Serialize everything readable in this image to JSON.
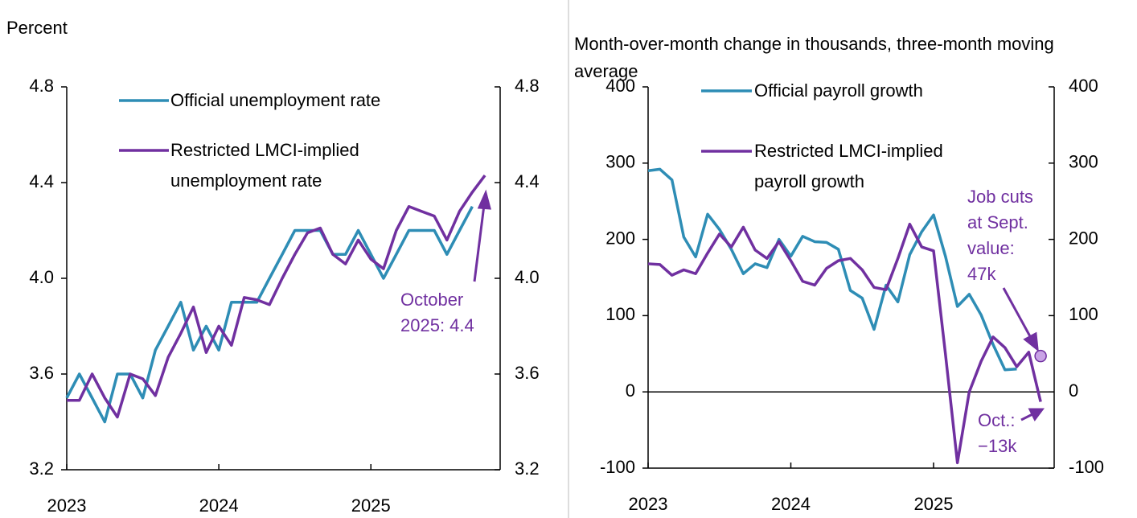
{
  "chart_data": [
    {
      "type": "line",
      "ylabel": "Percent",
      "x": [
        2023,
        2023.083,
        2023.167,
        2023.25,
        2023.333,
        2023.417,
        2023.5,
        2023.583,
        2023.667,
        2023.75,
        2023.833,
        2023.917,
        2024,
        2024.083,
        2024.167,
        2024.25,
        2024.333,
        2024.417,
        2024.5,
        2024.583,
        2024.667,
        2024.75,
        2024.833,
        2024.917,
        2025,
        2025.083,
        2025.167,
        2025.25,
        2025.333,
        2025.417,
        2025.5,
        2025.583,
        2025.667,
        2025.75
      ],
      "series": [
        {
          "name": "Official unemployment rate",
          "color": "#2e8db5",
          "values": [
            3.5,
            3.6,
            3.5,
            3.4,
            3.6,
            3.6,
            3.5,
            3.7,
            3.8,
            3.9,
            3.7,
            3.8,
            3.7,
            3.9,
            3.9,
            3.9,
            4.0,
            4.1,
            4.2,
            4.2,
            4.2,
            4.1,
            4.1,
            4.2,
            4.1,
            4.0,
            4.1,
            4.2,
            4.2,
            4.2,
            4.1,
            4.2,
            4.3,
            null
          ]
        },
        {
          "name": "Restricted LMCI-implied unemployment rate",
          "color": "#7030a0",
          "values": [
            3.49,
            3.49,
            3.6,
            3.5,
            3.42,
            3.6,
            3.58,
            3.51,
            3.67,
            3.77,
            3.88,
            3.69,
            3.8,
            3.72,
            3.92,
            3.91,
            3.89,
            4.0,
            4.1,
            4.19,
            4.21,
            4.1,
            4.06,
            4.16,
            4.08,
            4.04,
            4.2,
            4.3,
            4.28,
            4.26,
            4.16,
            4.28,
            4.36,
            4.43
          ]
        }
      ],
      "xlim": [
        2023,
        2025.85
      ],
      "xticks": [
        2023,
        2024,
        2025
      ],
      "ylim": [
        3.2,
        4.8
      ],
      "yticks": [
        3.2,
        3.6,
        {
          "value": 4,
          "label": "4.0"
        },
        4.4,
        4.8
      ],
      "annotations": [
        {
          "lines": [
            "October",
            "2025: 4.4"
          ],
          "color": "#7030a0"
        }
      ]
    },
    {
      "type": "line",
      "ylabel": "Month-over-month change in thousands, three-month moving average",
      "x": [
        2023,
        2023.083,
        2023.167,
        2023.25,
        2023.333,
        2023.417,
        2023.5,
        2023.583,
        2023.667,
        2023.75,
        2023.833,
        2023.917,
        2024,
        2024.083,
        2024.167,
        2024.25,
        2024.333,
        2024.417,
        2024.5,
        2024.583,
        2024.667,
        2024.75,
        2024.833,
        2024.917,
        2025,
        2025.083,
        2025.167,
        2025.25,
        2025.333,
        2025.417,
        2025.5,
        2025.583,
        2025.667,
        2025.75
      ],
      "series": [
        {
          "name": "Official payroll growth",
          "color": "#2e8db5",
          "values": [
            290,
            292,
            278,
            203,
            177,
            233,
            213,
            187,
            155,
            168,
            163,
            200,
            178,
            204,
            197,
            196,
            187,
            133,
            123,
            82,
            140,
            118,
            180,
            210,
            232,
            178,
            112,
            128,
            101,
            62,
            29,
            30,
            null,
            null
          ]
        },
        {
          "name": "Restricted LMCI-implied payroll growth",
          "color": "#7030a0",
          "values": [
            168,
            167,
            153,
            160,
            155,
            182,
            207,
            190,
            216,
            186,
            175,
            197,
            172,
            145,
            140,
            162,
            172,
            175,
            160,
            137,
            134,
            175,
            220,
            190,
            185,
            50,
            -93,
            0,
            40,
            72,
            58,
            33,
            52,
            -13
          ]
        }
      ],
      "markers": [
        {
          "x": 2025.75,
          "value": 47,
          "color": "#c9a3e6"
        }
      ],
      "xlim": [
        2023,
        2025.845
      ],
      "xticks": [
        2023,
        2024,
        2025
      ],
      "ylim": [
        -100,
        400
      ],
      "yticks": [
        -100,
        0,
        100,
        200,
        300,
        400
      ],
      "zero_line": true,
      "annotations": [
        {
          "lines": [
            "Job cuts",
            "at Sept.",
            "value:",
            "47k"
          ],
          "color": "#7030a0"
        },
        {
          "lines": [
            "Oct.:",
            "−13k"
          ],
          "color": "#7030a0"
        }
      ]
    }
  ]
}
